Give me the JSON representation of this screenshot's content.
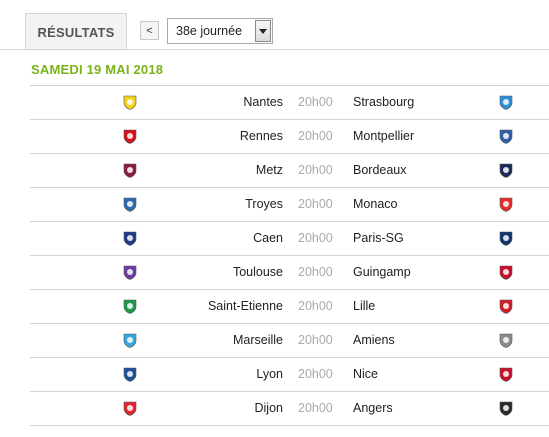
{
  "tab": {
    "label": "RÉSULTATS"
  },
  "nav": {
    "prev_label": "<",
    "round_select_value": "38e journée"
  },
  "date_header": "SAMEDI 19 MAI 2018",
  "matches": [
    {
      "home": "Nantes",
      "time": "20h00",
      "away": "Strasbourg",
      "home_color": "#f2d21b",
      "away_color": "#2f8fd6"
    },
    {
      "home": "Rennes",
      "time": "20h00",
      "away": "Montpellier",
      "home_color": "#d6121a",
      "away_color": "#2e5fa8"
    },
    {
      "home": "Metz",
      "time": "20h00",
      "away": "Bordeaux",
      "home_color": "#8a1d3b",
      "away_color": "#1a2a57"
    },
    {
      "home": "Troyes",
      "time": "20h00",
      "away": "Monaco",
      "home_color": "#2f6bb0",
      "away_color": "#e52b2b"
    },
    {
      "home": "Caen",
      "time": "20h00",
      "away": "Paris-SG",
      "home_color": "#1f3a8a",
      "away_color": "#12356e"
    },
    {
      "home": "Toulouse",
      "time": "20h00",
      "away": "Guingamp",
      "home_color": "#6b3fa0",
      "away_color": "#c8102e"
    },
    {
      "home": "Saint-Etienne",
      "time": "20h00",
      "away": "Lille",
      "home_color": "#1d9a4b",
      "away_color": "#d01c2b"
    },
    {
      "home": "Marseille",
      "time": "20h00",
      "away": "Amiens",
      "home_color": "#35a8e0",
      "away_color": "#8c8c8c"
    },
    {
      "home": "Lyon",
      "time": "20h00",
      "away": "Nice",
      "home_color": "#1e4f9c",
      "away_color": "#c8102e"
    },
    {
      "home": "Dijon",
      "time": "20h00",
      "away": "Angers",
      "home_color": "#e3262e",
      "away_color": "#2b2b2b"
    }
  ]
}
